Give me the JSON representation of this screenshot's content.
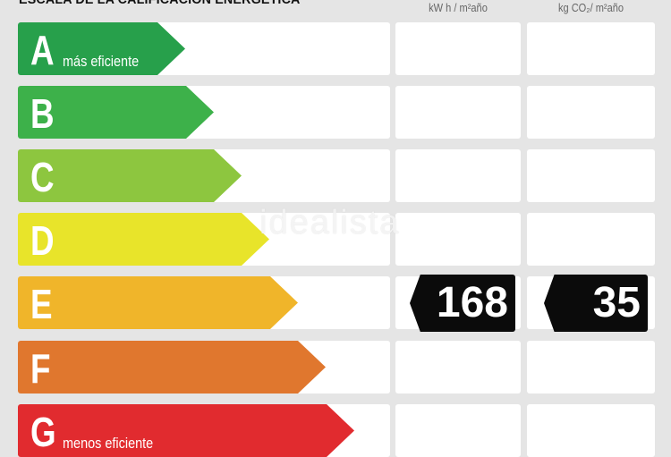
{
  "title": "ESCALA DE LA CALIFICACIÓN ENERGÉTICA",
  "headers": {
    "consumption": "kW h / m²año",
    "emissions": "kg CO₂/ m²año"
  },
  "rows": [
    {
      "letter": "A",
      "label": "más eficiente",
      "color": "#27a04b"
    },
    {
      "letter": "B",
      "label": "",
      "color": "#3db14a"
    },
    {
      "letter": "C",
      "label": "",
      "color": "#8dc63f"
    },
    {
      "letter": "D",
      "label": "",
      "color": "#e8e42a"
    },
    {
      "letter": "E",
      "label": "",
      "color": "#f0b52a"
    },
    {
      "letter": "F",
      "label": "",
      "color": "#e0772e"
    },
    {
      "letter": "G",
      "label": "menos eficiente",
      "color": "#e12b2f"
    }
  ],
  "rating": {
    "letter": "E",
    "consumption": "168",
    "emissions": "35"
  },
  "watermark": "idealista"
}
